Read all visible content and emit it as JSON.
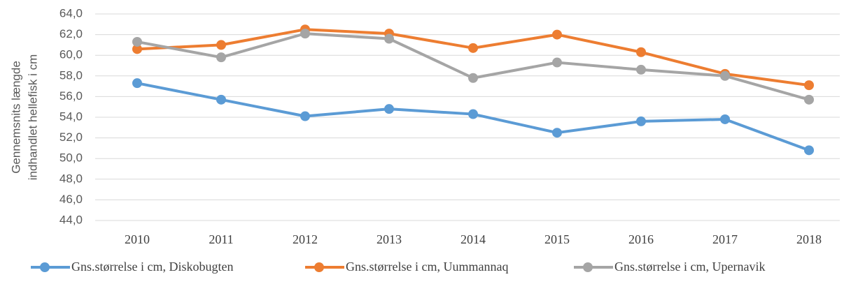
{
  "chart_data": {
    "type": "line",
    "ylabel": [
      "Gennemsnits længde",
      "indhandlet hellefisk i cm"
    ],
    "categories": [
      "2010",
      "2011",
      "2012",
      "2013",
      "2014",
      "2015",
      "2016",
      "2017",
      "2018"
    ],
    "series": [
      {
        "name": "Gns.størrelse i cm, Diskobugten",
        "color": "#5b9bd5",
        "values": [
          57.3,
          55.7,
          54.1,
          54.8,
          54.3,
          52.5,
          53.6,
          53.8,
          50.8
        ]
      },
      {
        "name": "Gns.størrelse i cm, Uummannaq",
        "color": "#ed7d31",
        "values": [
          60.6,
          61.0,
          62.5,
          62.1,
          60.7,
          62.0,
          60.3,
          58.2,
          57.1
        ]
      },
      {
        "name": "Gns.størrelse i cm, Upernavik",
        "color": "#a5a5a5",
        "values": [
          61.3,
          59.8,
          62.1,
          61.6,
          57.8,
          59.3,
          58.6,
          58.0,
          55.7
        ]
      }
    ],
    "ylim": [
      44,
      64
    ],
    "yticks": [
      {
        "value": 44,
        "label": "44,0"
      },
      {
        "value": 46,
        "label": "46,0"
      },
      {
        "value": 48,
        "label": "48,0"
      },
      {
        "value": 50,
        "label": "50,0"
      },
      {
        "value": 52,
        "label": "52,0"
      },
      {
        "value": 54,
        "label": "54,0"
      },
      {
        "value": 56,
        "label": "56,0"
      },
      {
        "value": 58,
        "label": "58,0"
      },
      {
        "value": 60,
        "label": "60,0"
      },
      {
        "value": 62,
        "label": "62,0"
      },
      {
        "value": 64,
        "label": "64,0"
      }
    ],
    "grid": true,
    "legend": "bottom"
  }
}
